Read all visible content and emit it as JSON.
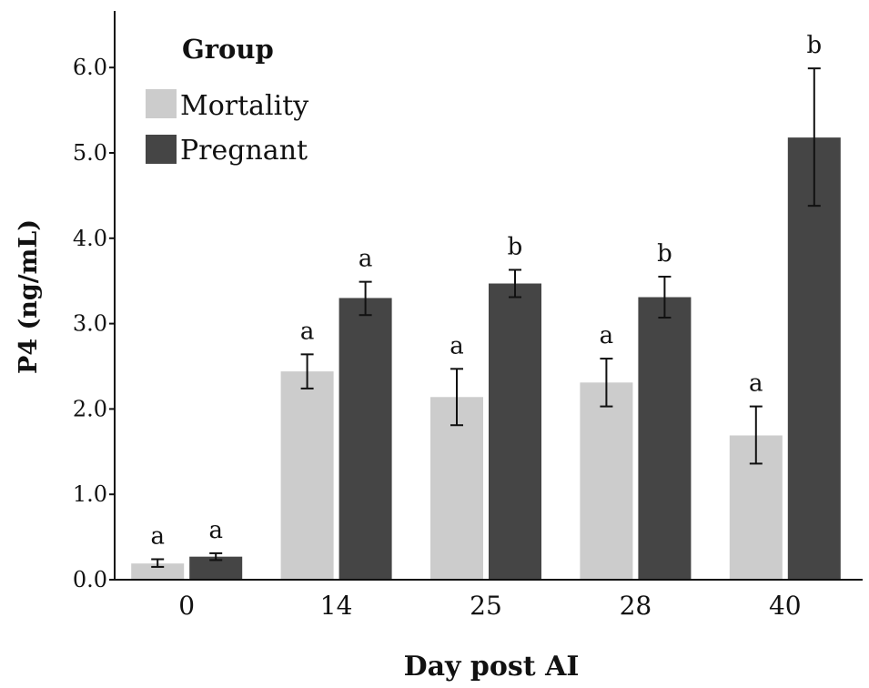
{
  "chart_data": {
    "type": "bar",
    "title": "",
    "xlabel": "Day post AI",
    "ylabel": "P4 (ng/mL)",
    "ylim": [
      0,
      6.6
    ],
    "yticks": [
      "0.0",
      "1.0",
      "2.0",
      "3.0",
      "4.0",
      "5.0",
      "6.0"
    ],
    "categories": [
      "0",
      "14",
      "25",
      "28",
      "40"
    ],
    "legend": {
      "title": "Group",
      "position": "top-left"
    },
    "grid": false,
    "series": [
      {
        "name": "Mortality",
        "color": "#cccccc",
        "values": [
          0.19,
          2.44,
          2.14,
          2.31,
          1.69
        ],
        "error_low": [
          0.15,
          2.24,
          1.81,
          2.03,
          1.36
        ],
        "error_high": [
          0.24,
          2.64,
          2.47,
          2.59,
          2.03
        ],
        "letters": [
          "a",
          "a",
          "a",
          "a",
          "a"
        ]
      },
      {
        "name": "Pregnant",
        "color": "#454545",
        "values": [
          0.27,
          3.3,
          3.47,
          3.31,
          5.18
        ],
        "error_low": [
          0.23,
          3.1,
          3.31,
          3.07,
          4.38
        ],
        "error_high": [
          0.31,
          3.49,
          3.63,
          3.55,
          5.99
        ],
        "letters": [
          "a",
          "a",
          "b",
          "b",
          "b"
        ]
      }
    ]
  }
}
